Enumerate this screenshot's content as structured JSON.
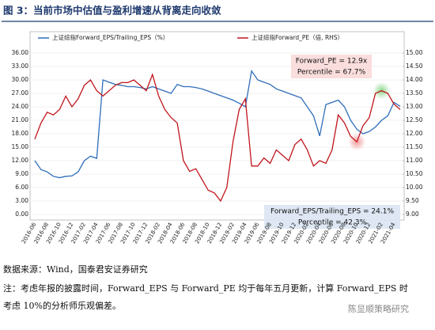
{
  "chart_data": {
    "type": "line",
    "title": "图 3：当前市场中估值与盈利增速从背离走向收敛",
    "categories": [
      "2016-06",
      null,
      "2016-08",
      null,
      "2016-10",
      null,
      "2016-12",
      null,
      "2017-02",
      null,
      "2017-04",
      null,
      "2017-06",
      null,
      "2017-08",
      null,
      "2017-10",
      null,
      "2017-12",
      null,
      "2018-02",
      null,
      "2018-04",
      null,
      "2018-06",
      null,
      "2018-08",
      null,
      "2018-10",
      null,
      "2018-12",
      null,
      "2019-02",
      null,
      "2019-04",
      null,
      "2019-06",
      null,
      "2019-08",
      null,
      "2019-10",
      null,
      "2019-12",
      null,
      "2020-02",
      null,
      "2020-04",
      null,
      "2020-06",
      null,
      "2020-08",
      null,
      "2020-10",
      null,
      "2020-12",
      null,
      "2021-02",
      null,
      "2021-04",
      null
    ],
    "series": [
      {
        "name": "上证综指Forward_EPS/Trailing_EPS（%）",
        "color": "#2f6eba",
        "values": [
          12,
          10,
          9.5,
          8.5,
          8.2,
          8.5,
          8.6,
          9.5,
          12,
          13,
          12.5,
          30,
          29.5,
          29,
          28.8,
          28.5,
          28.5,
          28.3,
          28,
          28.5,
          28,
          27.5,
          27,
          29,
          28.5,
          28.5,
          28.3,
          28,
          27.5,
          27,
          26.5,
          26,
          25.5,
          24.8,
          24,
          32,
          30,
          29.5,
          29,
          28,
          27.5,
          27,
          26.5,
          26,
          24,
          22,
          17.5,
          24.5,
          25,
          25.5,
          24,
          21,
          19,
          18,
          18.5,
          19.5,
          21,
          22,
          25,
          24.1
        ]
      },
      {
        "name": "上证综指Forward_PE（倍, RHS）",
        "color": "#c0161d",
        "axis": "y2",
        "values": [
          11.8,
          12.4,
          12.8,
          12.7,
          12.9,
          13.4,
          13,
          13.3,
          13.8,
          14,
          13.6,
          13.4,
          13.6,
          13.8,
          13.9,
          13.9,
          14,
          13.8,
          13.6,
          14.2,
          13.4,
          12.9,
          12.6,
          12.4,
          11,
          10.6,
          10.7,
          10.3,
          9.9,
          9.8,
          9.5,
          10,
          11.7,
          12.9,
          13.3,
          10.8,
          10.8,
          11.1,
          10.9,
          11.4,
          11.2,
          11,
          11.6,
          11.8,
          11.4,
          10.8,
          11,
          10.9,
          11.4,
          12.7,
          12.4,
          11.9,
          11.7,
          12.3,
          12.6,
          13.5,
          13.6,
          13.5,
          13.1,
          12.9
        ]
      }
    ],
    "ylim": [
      0,
      36
    ],
    "yticks": [
      {
        "value": 0,
        "label": "0.00"
      },
      {
        "value": 3,
        "label": "3.00"
      },
      {
        "value": 6,
        "label": "6.00"
      },
      {
        "value": 9,
        "label": "9.00"
      },
      {
        "value": 12,
        "label": "12.00"
      },
      {
        "value": 15,
        "label": "15.00"
      },
      {
        "value": 18,
        "label": "18.00"
      },
      {
        "value": 21,
        "label": "21.00"
      },
      {
        "value": 24,
        "label": "24.00"
      },
      {
        "value": 27,
        "label": "27.00"
      },
      {
        "value": 30,
        "label": "30.00"
      },
      {
        "value": 33,
        "label": "33.00"
      },
      {
        "value": 36,
        "label": "36.00"
      }
    ],
    "y2lim": [
      9,
      15
    ],
    "y2ticks": [
      {
        "value": 9,
        "label": "9.00"
      },
      {
        "value": 9.5,
        "label": "9.50"
      },
      {
        "value": 10,
        "label": "10.00"
      },
      {
        "value": 10.5,
        "label": "10.50"
      },
      {
        "value": 11,
        "label": "11.00"
      },
      {
        "value": 11.5,
        "label": "11.50"
      },
      {
        "value": 12,
        "label": "12.00"
      },
      {
        "value": 12.5,
        "label": "12.50"
      },
      {
        "value": 13,
        "label": "13.00"
      },
      {
        "value": 13.5,
        "label": "13.50"
      },
      {
        "value": 14,
        "label": "14.00"
      },
      {
        "value": 14.5,
        "label": "14.50"
      },
      {
        "value": 15,
        "label": "15.00"
      }
    ],
    "grid": true,
    "annotations": [
      "Forward_PE = 12.9x",
      "Percentile = 67.7%",
      "Forward_EPS/Trailing_EPS = 24.1%",
      "Percentile = 42.3%"
    ],
    "source": "数据来源：Wind，国泰君安证券研究",
    "notes": [
      "注：考虑年报的披露时间，Forward_EPS 与 Forward_PE 均于每年五月更新，计算 Forward_EPS 时",
      "考虑 10%的分析师乐观偏差。"
    ],
    "watermark": "陈显顺策略研究"
  }
}
